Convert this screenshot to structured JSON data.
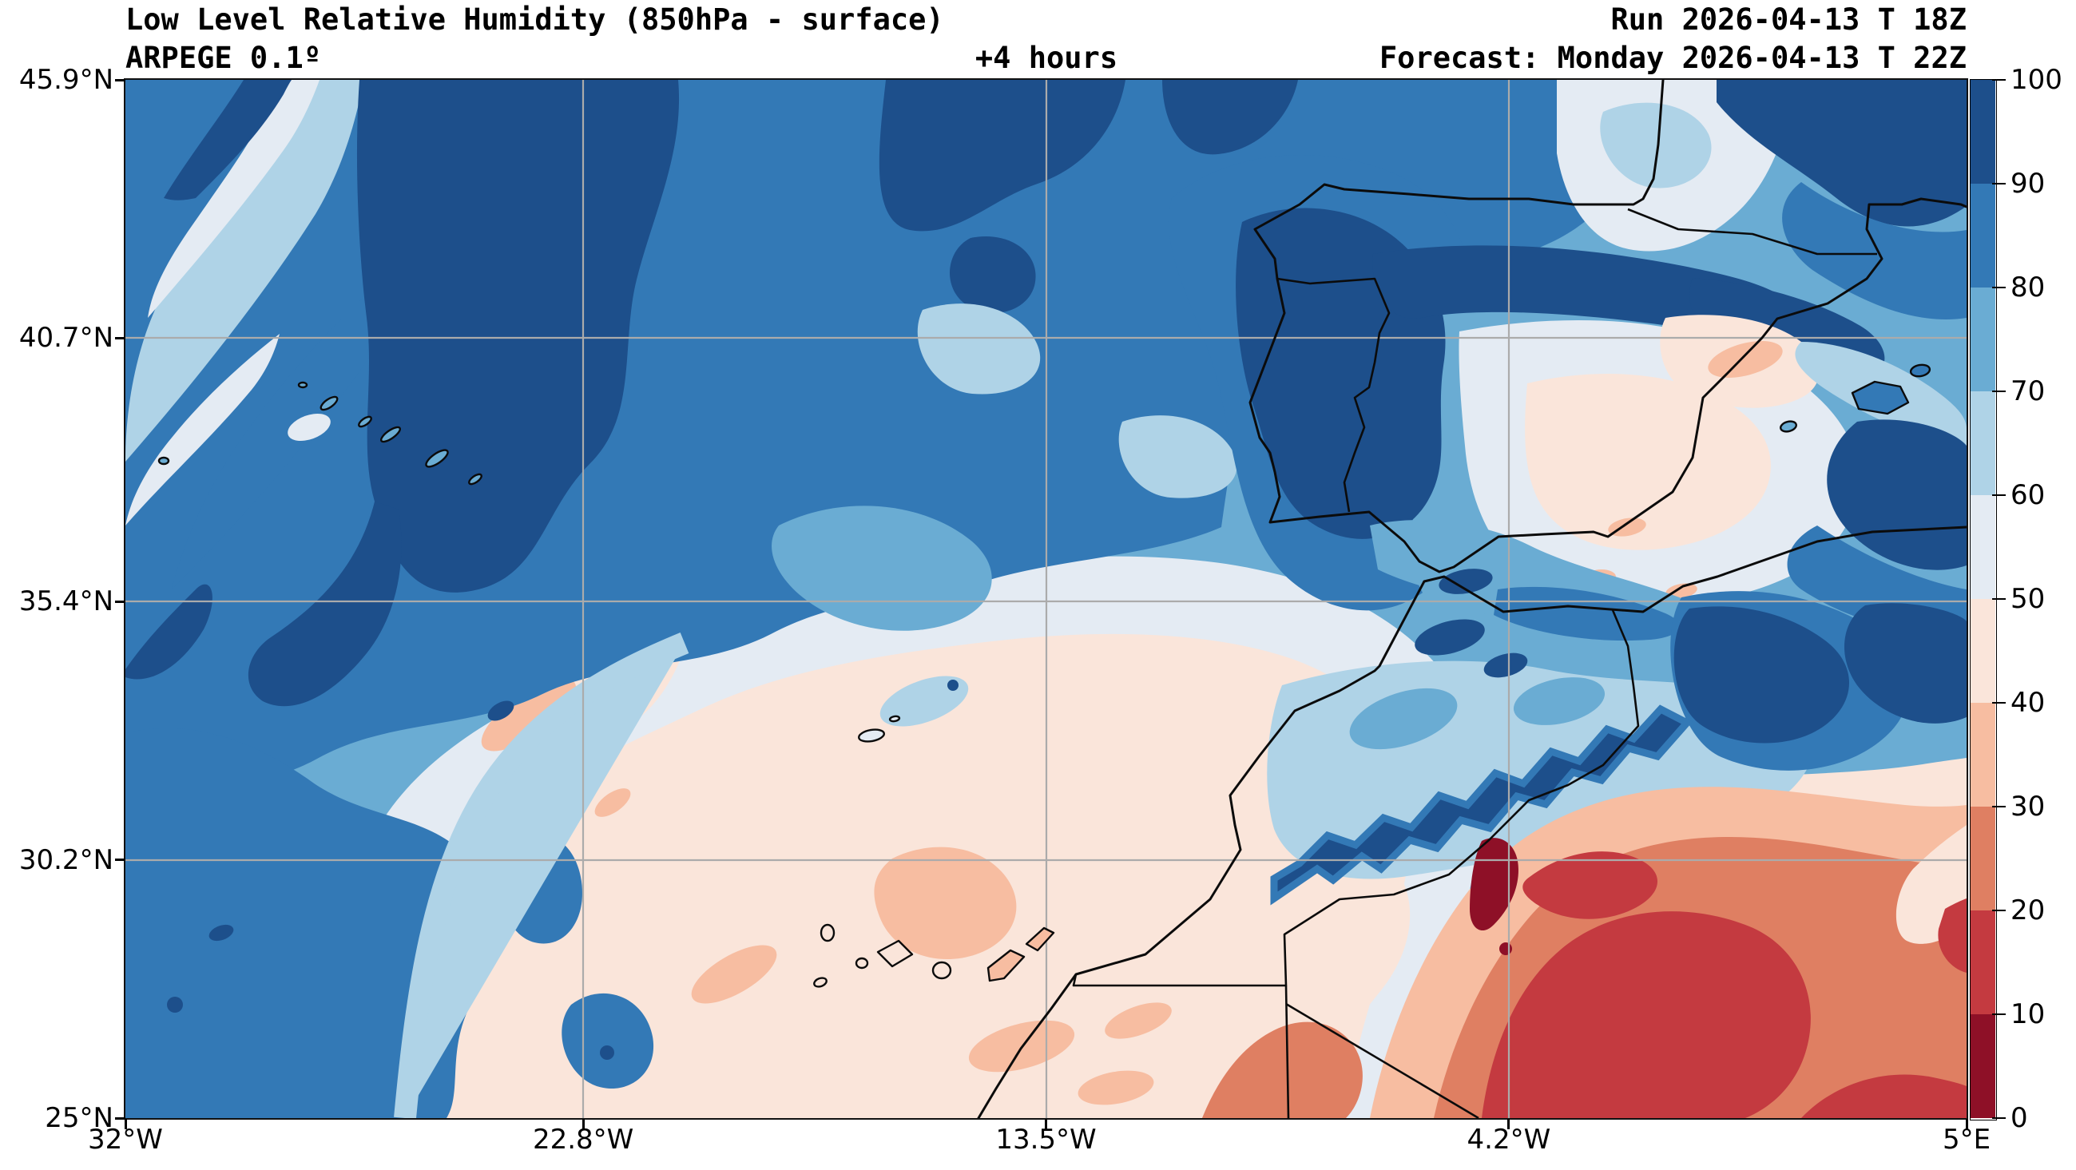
{
  "header": {
    "title": "Low Level Relative Humidity (850hPa - surface)",
    "model": "ARPEGE 0.1º",
    "lead_time": "+4 hours",
    "run": "Run 2026-04-13 T 18Z",
    "forecast": "Forecast: Monday 2026-04-13 T 22Z"
  },
  "chart_data": {
    "type": "heatmap",
    "subtype": "filled-contour-weather-map",
    "title": "Low Level Relative Humidity (850hPa - surface)",
    "variable": "relative humidity",
    "unit": "%",
    "model": "ARPEGE 0.1º",
    "run": "2026-04-13 18Z",
    "forecast_valid": "Monday 2026-04-13 22Z",
    "lead_hours": 4,
    "grid": true,
    "gridline_color": "#ababab",
    "x_axis": {
      "kind": "longitude",
      "range_deg": [
        -32,
        5
      ],
      "tick_values": [
        -32,
        -22.8,
        -13.5,
        -4.2,
        5
      ],
      "tick_labels": [
        "32°W",
        "22.8°W",
        "13.5°W",
        "4.2°W",
        "5°E"
      ]
    },
    "y_axis": {
      "kind": "latitude",
      "range_deg": [
        25,
        45.9
      ],
      "tick_values": [
        25,
        30.2,
        35.4,
        40.7,
        45.9
      ],
      "tick_labels": [
        "25°N",
        "30.2°N",
        "35.4°N",
        "40.7°N",
        "45.9°N"
      ]
    },
    "colorbar": {
      "min": 0,
      "max": 100,
      "step": 10,
      "tick_labels": [
        "0",
        "10",
        "20",
        "30",
        "40",
        "50",
        "60",
        "70",
        "80",
        "90",
        "100"
      ],
      "colors_low_to_high": [
        "#8e1027",
        "#c43a40",
        "#df7f62",
        "#f7bda1",
        "#fae5da",
        "#e4ebf3",
        "#afd3e7",
        "#6aacd3",
        "#3379b6",
        "#1d4f8b"
      ]
    },
    "features": [
      {
        "region": "NE Atlantic, NW quadrant (streaky SW-NE bands)",
        "rh_percent": "60-100"
      },
      {
        "region": "Large dark maximum north-center Atlantic and Bay of Biscay",
        "rh_percent": "90-100"
      },
      {
        "region": "Galicia, west Portugal coast, Cantabrian coast, Pyrenees",
        "rh_percent": "90-100"
      },
      {
        "region": "Interior Spain / Ebro valley (pale with dry spots)",
        "rh_percent": "30-60"
      },
      {
        "region": "Subtropical Atlantic (center-south, around Madeira/Canaries)",
        "rh_percent": "30-50"
      },
      {
        "region": "SW Atlantic corner moist pool",
        "rh_percent": "70-90"
      },
      {
        "region": "Atlas mountains narrow moist band",
        "rh_percent": "80-100"
      },
      {
        "region": "North Algeria / Tell and western Mediterranean patches",
        "rh_percent": "70-100"
      },
      {
        "region": "Sahara south of Atlas (driest core)",
        "rh_percent": "0-20"
      },
      {
        "region": "Sahara / SE quadrant broad dry zone",
        "rh_percent": "10-30"
      }
    ]
  }
}
